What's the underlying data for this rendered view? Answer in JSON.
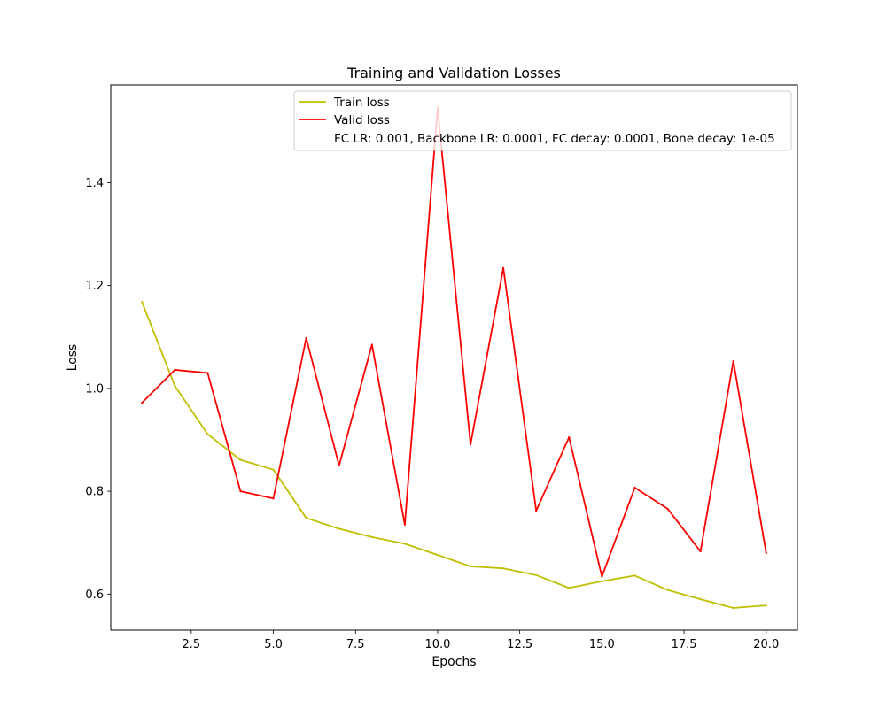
{
  "chart_data": {
    "type": "line",
    "title": "Training and Validation Losses",
    "xlabel": "Epochs",
    "ylabel": "Loss",
    "xlim": [
      0.05,
      20.95
    ],
    "ylim": [
      0.53,
      1.59
    ],
    "xticks": [
      2.5,
      5.0,
      7.5,
      10.0,
      12.5,
      15.0,
      17.5,
      20.0
    ],
    "xtick_labels": [
      "2.5",
      "5.0",
      "7.5",
      "10.0",
      "12.5",
      "15.0",
      "17.5",
      "20.0"
    ],
    "yticks": [
      0.6,
      0.8,
      1.0,
      1.2,
      1.4
    ],
    "ytick_labels": [
      "0.6",
      "0.8",
      "1.0",
      "1.2",
      "1.4"
    ],
    "grid": false,
    "legend_position": "top-right",
    "legend_note": "FC LR: 0.001, Backbone LR: 0.0001, FC decay: 0.0001, Bone decay: 1e-05",
    "x": [
      1,
      2,
      3,
      4,
      5,
      6,
      7,
      8,
      9,
      10,
      11,
      12,
      13,
      14,
      15,
      16,
      17,
      18,
      19,
      20
    ],
    "series": [
      {
        "name": "Train loss",
        "color": "#bfbf00",
        "values": [
          1.168,
          1.005,
          0.911,
          0.861,
          0.842,
          0.748,
          0.727,
          0.711,
          0.698,
          0.676,
          0.654,
          0.65,
          0.637,
          0.612,
          0.625,
          0.636,
          0.608,
          0.59,
          0.573,
          0.578
        ]
      },
      {
        "name": "Valid loss",
        "color": "#ff0000",
        "values": [
          0.972,
          1.036,
          1.03,
          0.8,
          0.786,
          1.098,
          0.85,
          1.085,
          0.735,
          1.545,
          0.891,
          1.234,
          0.762,
          0.905,
          0.634,
          0.807,
          0.766,
          0.683,
          1.053,
          0.68
        ]
      }
    ]
  }
}
